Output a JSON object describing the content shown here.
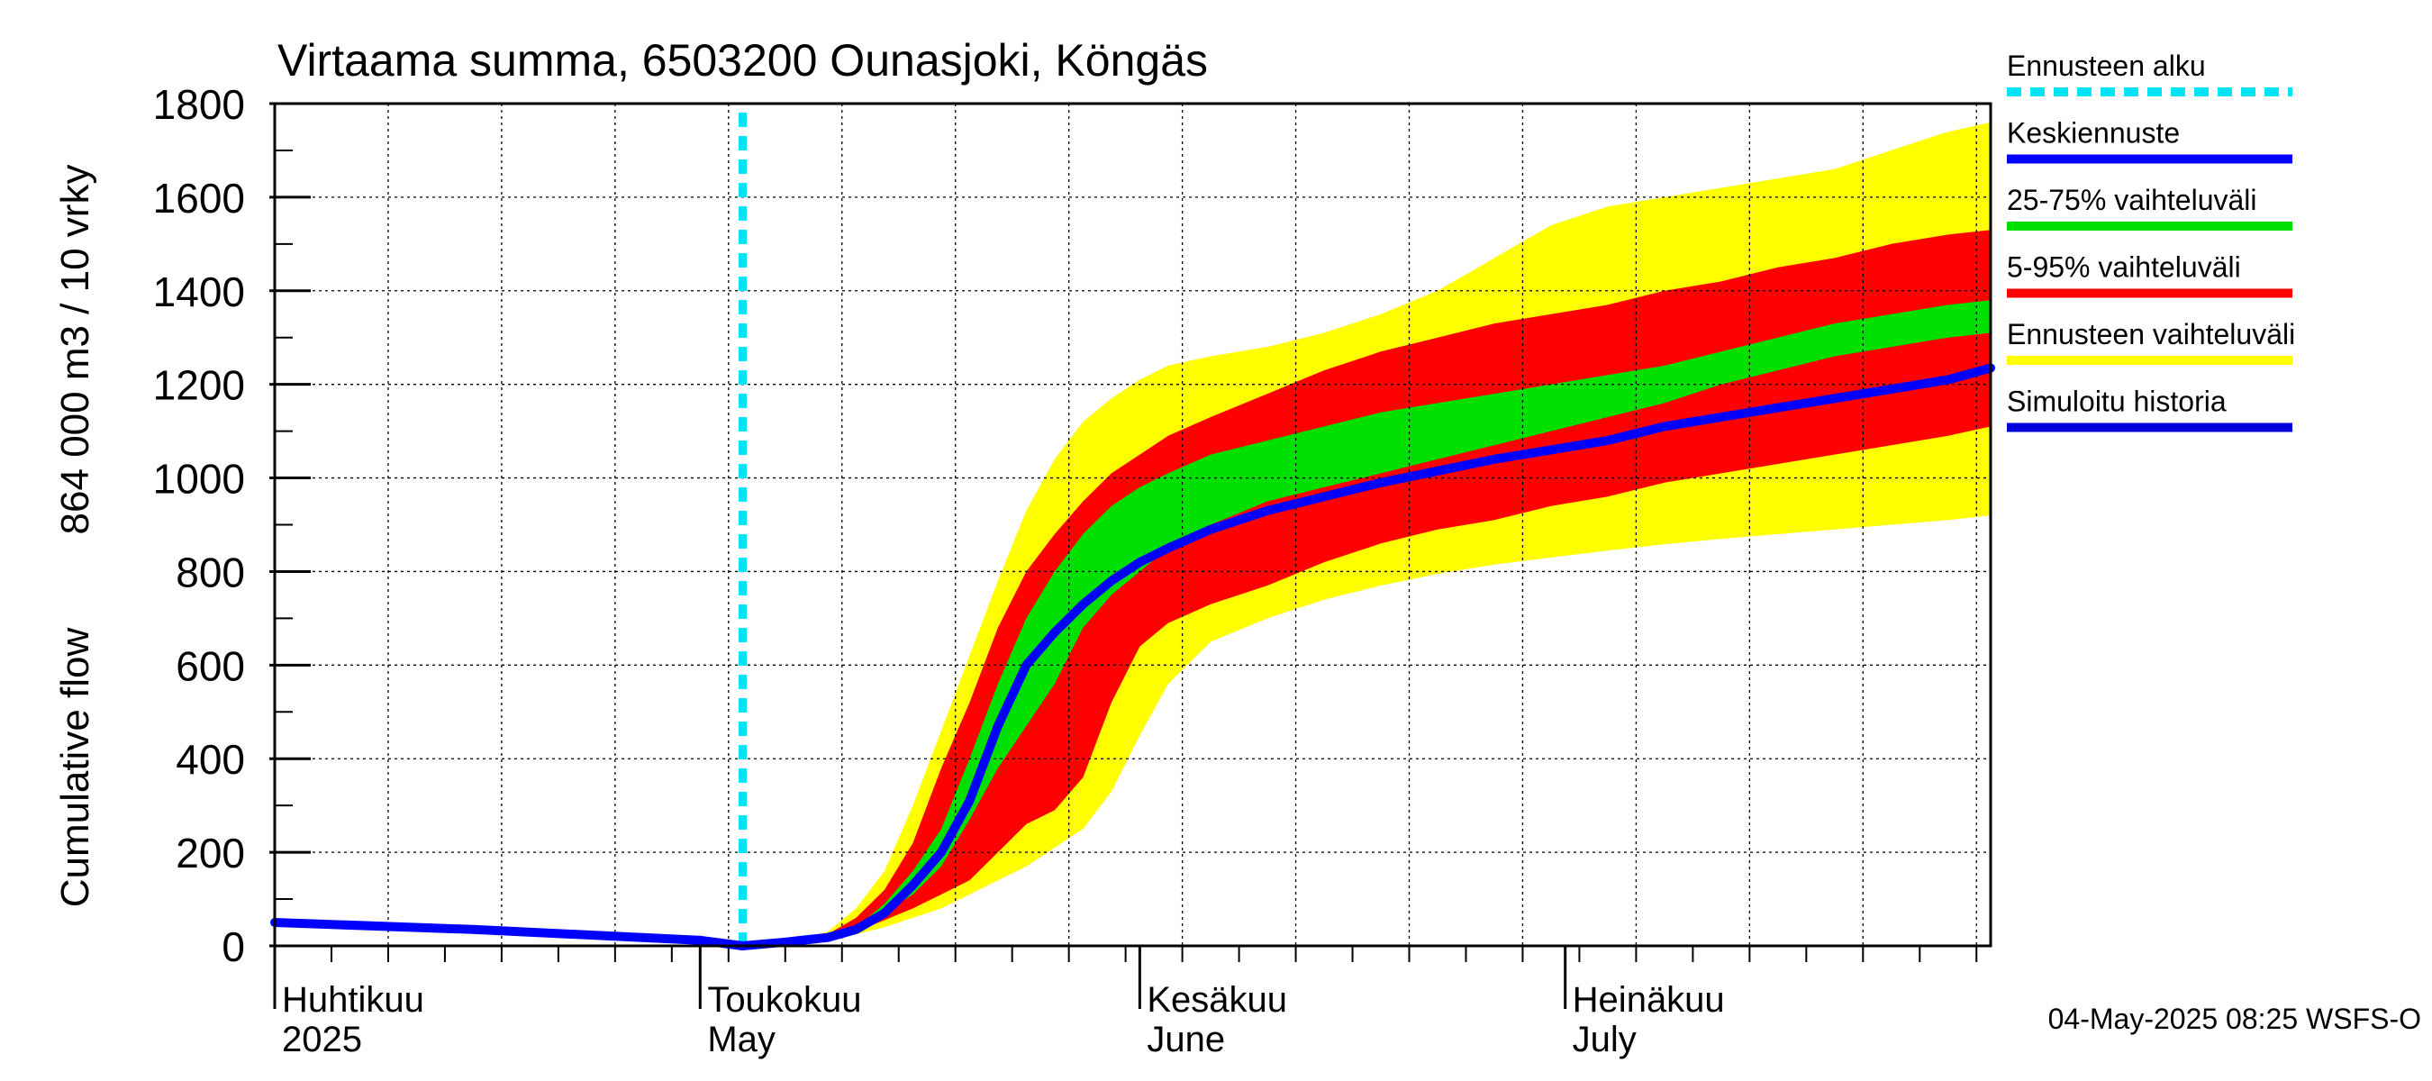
{
  "chart_data": {
    "type": "area",
    "title": "Virtaama summa, 6503200 Ounasjoki, Köngäs",
    "ylabel_lines": [
      "Cumulative flow",
      "864 000 m3 / 10 vrky"
    ],
    "ylim": [
      0,
      1800
    ],
    "yticks": [
      0,
      200,
      400,
      600,
      800,
      1000,
      1200,
      1400,
      1600,
      1800
    ],
    "xlim": [
      "2025-04-01",
      "2025-07-31"
    ],
    "months": [
      {
        "date": "2025-04-01",
        "line1": "Huhtikuu",
        "line2": "2025"
      },
      {
        "date": "2025-05-01",
        "line1": "Toukokuu",
        "line2": "May"
      },
      {
        "date": "2025-06-01",
        "line1": "Kesäkuu",
        "line2": "June"
      },
      {
        "date": "2025-07-01",
        "line1": "Heinäkuu",
        "line2": "July"
      }
    ],
    "forecast_start": "2025-05-04",
    "timestamp": "04-May-2025 08:25 WSFS-O",
    "legend": [
      {
        "label": "Ennusteen alku",
        "color": "#00e5f5",
        "style": "dashed"
      },
      {
        "label": "Keskiennuste",
        "color": "#0000ff",
        "style": "solid"
      },
      {
        "label": "25-75% vaihteluväli",
        "color": "#00e000",
        "style": "solid"
      },
      {
        "label": "5-95% vaihteluväli",
        "color": "#ff0000",
        "style": "solid"
      },
      {
        "label": "Ennusteen vaihteluväli",
        "color": "#ffff00",
        "style": "solid"
      },
      {
        "label": "Simuloitu historia",
        "color": "#0000dd",
        "style": "solid"
      }
    ],
    "colors": {
      "full_range": "#ffff00",
      "range_5_95": "#ff0000",
      "range_25_75": "#00e000",
      "median": "#0000ff",
      "history": "#0000ff",
      "forecast_start": "#00e5f5"
    },
    "history": {
      "x": [
        "2025-04-01",
        "2025-04-15",
        "2025-05-01",
        "2025-05-04"
      ],
      "y": [
        50,
        35,
        12,
        0
      ]
    },
    "forecast": {
      "x": [
        "2025-05-04",
        "2025-05-07",
        "2025-05-10",
        "2025-05-12",
        "2025-05-14",
        "2025-05-16",
        "2025-05-18",
        "2025-05-20",
        "2025-05-22",
        "2025-05-24",
        "2025-05-26",
        "2025-05-28",
        "2025-05-30",
        "2025-06-01",
        "2025-06-03",
        "2025-06-06",
        "2025-06-10",
        "2025-06-14",
        "2025-06-18",
        "2025-06-22",
        "2025-06-26",
        "2025-06-30",
        "2025-07-04",
        "2025-07-08",
        "2025-07-12",
        "2025-07-16",
        "2025-07-20",
        "2025-07-24",
        "2025-07-28",
        "2025-07-31"
      ],
      "min": [
        0,
        5,
        15,
        25,
        40,
        60,
        80,
        110,
        140,
        170,
        210,
        250,
        330,
        450,
        560,
        650,
        700,
        740,
        770,
        795,
        815,
        830,
        845,
        858,
        870,
        880,
        890,
        900,
        910,
        920
      ],
      "p5": [
        0,
        5,
        15,
        30,
        55,
        80,
        110,
        140,
        200,
        260,
        290,
        360,
        520,
        640,
        690,
        730,
        770,
        820,
        860,
        890,
        910,
        940,
        960,
        990,
        1010,
        1030,
        1050,
        1070,
        1090,
        1110
      ],
      "p25": [
        0,
        8,
        18,
        35,
        70,
        110,
        170,
        270,
        380,
        470,
        560,
        680,
        750,
        800,
        850,
        900,
        950,
        980,
        1010,
        1040,
        1070,
        1100,
        1130,
        1160,
        1200,
        1230,
        1260,
        1280,
        1300,
        1310
      ],
      "median": [
        0,
        8,
        18,
        35,
        70,
        130,
        200,
        310,
        470,
        600,
        670,
        730,
        780,
        820,
        850,
        890,
        930,
        960,
        990,
        1015,
        1040,
        1060,
        1080,
        1110,
        1130,
        1150,
        1170,
        1190,
        1210,
        1235
      ],
      "p75": [
        0,
        10,
        20,
        40,
        90,
        160,
        250,
        400,
        560,
        700,
        800,
        880,
        940,
        980,
        1010,
        1050,
        1080,
        1110,
        1140,
        1160,
        1180,
        1200,
        1220,
        1240,
        1270,
        1300,
        1330,
        1350,
        1370,
        1380
      ],
      "p95": [
        0,
        10,
        25,
        60,
        120,
        220,
        380,
        520,
        680,
        800,
        880,
        950,
        1010,
        1050,
        1090,
        1130,
        1180,
        1230,
        1270,
        1300,
        1330,
        1350,
        1370,
        1400,
        1420,
        1450,
        1470,
        1500,
        1520,
        1530
      ],
      "max": [
        0,
        10,
        30,
        80,
        160,
        300,
        460,
        620,
        780,
        930,
        1040,
        1120,
        1170,
        1210,
        1240,
        1260,
        1280,
        1310,
        1350,
        1400,
        1470,
        1540,
        1580,
        1600,
        1620,
        1640,
        1660,
        1700,
        1740,
        1760
      ]
    }
  }
}
